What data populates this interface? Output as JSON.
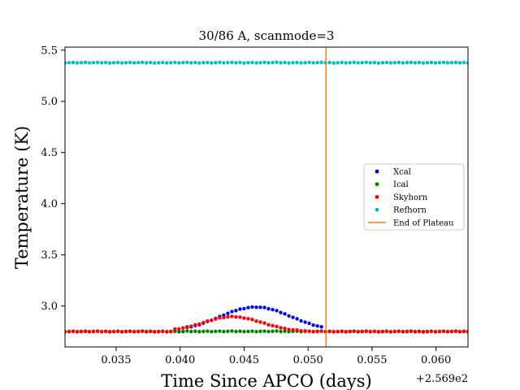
{
  "chart_data": {
    "type": "scatter",
    "title": "30/86 A, scanmode=3",
    "xlabel": "Time Since APCO (days)",
    "ylabel": "Temperature (K)",
    "offset_text": "+2.569e2",
    "xlim": [
      0.031,
      0.0625
    ],
    "ylim": [
      2.6,
      5.53
    ],
    "xticks": [
      0.035,
      0.04,
      0.045,
      0.05,
      0.055,
      0.06
    ],
    "xtick_labels": [
      "0.035",
      "0.040",
      "0.045",
      "0.050",
      "0.055",
      "0.060"
    ],
    "yticks": [
      3.0,
      3.5,
      4.0,
      4.5,
      5.0,
      5.5
    ],
    "ytick_labels": [
      "3.0",
      "3.5",
      "4.0",
      "4.5",
      "5.0",
      "5.5"
    ],
    "grid": false,
    "legend_position": "center-right",
    "x_range": [
      0.031,
      0.0625
    ],
    "n_points": 100,
    "series": [
      {
        "name": "Xcal",
        "color": "#0000ff",
        "kind": "points",
        "baseline": 2.75,
        "peak": 2.99,
        "peak_x": 0.0459,
        "width": 0.0028,
        "extent": [
          0.0405,
          0.0513
        ]
      },
      {
        "name": "Ical",
        "color": "#008000",
        "kind": "points",
        "baseline": 2.752
      },
      {
        "name": "Skyhorn",
        "color": "#ff0000",
        "kind": "points",
        "baseline": 2.75,
        "peak": 2.895,
        "peak_x": 0.0441,
        "width": 0.0023,
        "extent": [
          0.0395,
          0.05
        ]
      },
      {
        "name": "Refhorn",
        "color": "#00bfbf",
        "kind": "points",
        "baseline": 5.378
      }
    ],
    "vlines": [
      {
        "name": "End of Plateau",
        "color": "#ff7f0e",
        "x": 0.0514
      }
    ]
  }
}
